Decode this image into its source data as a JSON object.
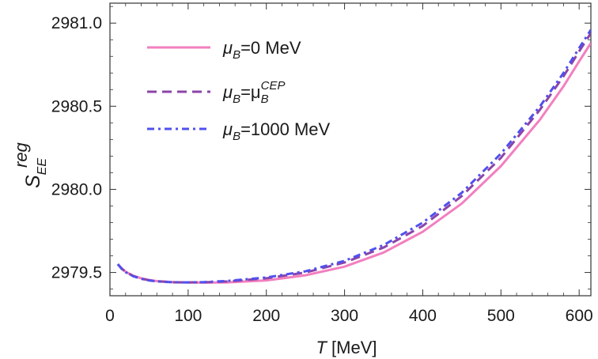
{
  "chart_data": {
    "type": "line",
    "xlabel": {
      "italic": "T",
      "plain": " [MeV]"
    },
    "ylabel": {
      "main": "S",
      "sub": "EE",
      "sup": "reg"
    },
    "xlim": [
      0,
      615
    ],
    "ylim": [
      2979.36,
      2981.12
    ],
    "xticks": [
      0,
      100,
      200,
      300,
      400,
      500,
      600
    ],
    "yticks": [
      2979.5,
      2980.0,
      2980.5,
      2981.0
    ],
    "xtick_labels": [
      "0",
      "100",
      "200",
      "300",
      "400",
      "500",
      "600"
    ],
    "ytick_labels": [
      "2979.5",
      "2980.0",
      "2980.5",
      "2981.0"
    ],
    "legend_position": "top-left",
    "series": [
      {
        "key": "mu0",
        "color": "#f27fbf",
        "dash": "solid",
        "legend": {
          "mu": "μ",
          "sub": "B",
          "eq": "=0 MeV",
          "sup": ""
        },
        "points": [
          [
            10,
            2979.55
          ],
          [
            15,
            2979.525
          ],
          [
            20,
            2979.505
          ],
          [
            30,
            2979.48
          ],
          [
            40,
            2979.465
          ],
          [
            50,
            2979.455
          ],
          [
            60,
            2979.448
          ],
          [
            80,
            2979.442
          ],
          [
            100,
            2979.44
          ],
          [
            120,
            2979.439
          ],
          [
            150,
            2979.44
          ],
          [
            200,
            2979.452
          ],
          [
            250,
            2979.483
          ],
          [
            300,
            2979.535
          ],
          [
            350,
            2979.62
          ],
          [
            400,
            2979.745
          ],
          [
            450,
            2979.915
          ],
          [
            500,
            2980.14
          ],
          [
            550,
            2980.42
          ],
          [
            580,
            2980.62
          ],
          [
            600,
            2980.77
          ],
          [
            615,
            2980.88
          ]
        ]
      },
      {
        "key": "mucep",
        "color": "#8b44a8",
        "dash": "dashed",
        "legend": {
          "mu": "μ",
          "sub": "B",
          "eq": "=μ",
          "eqsub": "B",
          "sup": "CEP"
        },
        "points": [
          [
            10,
            2979.55
          ],
          [
            15,
            2979.523
          ],
          [
            20,
            2979.503
          ],
          [
            30,
            2979.478
          ],
          [
            40,
            2979.463
          ],
          [
            50,
            2979.453
          ],
          [
            60,
            2979.447
          ],
          [
            80,
            2979.441
          ],
          [
            100,
            2979.44
          ],
          [
            120,
            2979.441
          ],
          [
            150,
            2979.446
          ],
          [
            200,
            2979.465
          ],
          [
            250,
            2979.5
          ],
          [
            300,
            2979.56
          ],
          [
            350,
            2979.65
          ],
          [
            400,
            2979.78
          ],
          [
            450,
            2979.96
          ],
          [
            500,
            2980.19
          ],
          [
            550,
            2980.48
          ],
          [
            580,
            2980.68
          ],
          [
            600,
            2980.83
          ],
          [
            615,
            2980.94
          ]
        ]
      },
      {
        "key": "mu1000",
        "color": "#5050ee",
        "dash": "dashdot",
        "legend": {
          "mu": "μ",
          "sub": "B",
          "eq": "=1000 MeV",
          "sup": ""
        },
        "points": [
          [
            10,
            2979.55
          ],
          [
            15,
            2979.522
          ],
          [
            20,
            2979.502
          ],
          [
            30,
            2979.477
          ],
          [
            40,
            2979.462
          ],
          [
            50,
            2979.452
          ],
          [
            60,
            2979.446
          ],
          [
            80,
            2979.441
          ],
          [
            100,
            2979.44
          ],
          [
            120,
            2979.442
          ],
          [
            150,
            2979.449
          ],
          [
            200,
            2979.47
          ],
          [
            250,
            2979.507
          ],
          [
            300,
            2979.57
          ],
          [
            350,
            2979.665
          ],
          [
            400,
            2979.8
          ],
          [
            450,
            2979.98
          ],
          [
            500,
            2980.215
          ],
          [
            550,
            2980.5
          ],
          [
            580,
            2980.7
          ],
          [
            600,
            2980.85
          ],
          [
            615,
            2980.96
          ]
        ]
      }
    ]
  }
}
